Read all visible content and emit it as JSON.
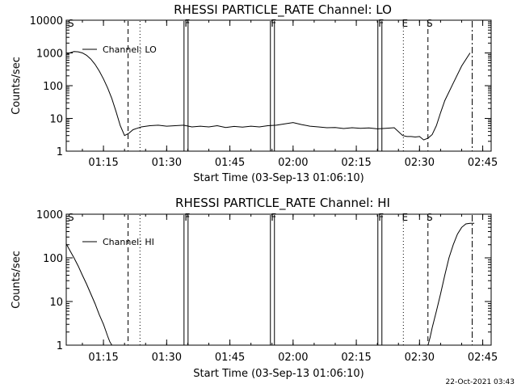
{
  "timestamp": "22-Oct-2021 03:43",
  "chart_data": [
    {
      "type": "line",
      "title": "RHESSI PARTICLE_RATE Channel: LO",
      "xlabel": "Start Time (03-Sep-13 01:06:10)",
      "ylabel": "Counts/sec",
      "yscale": "log",
      "ylim": [
        1,
        10000
      ],
      "xlim": [
        "01:06:10",
        "02:47:00"
      ],
      "x_ticks": [
        "01:15",
        "01:30",
        "01:45",
        "02:00",
        "02:15",
        "02:30",
        "02:45"
      ],
      "y_ticks": [
        "1",
        "10",
        "100",
        "1000",
        "10000"
      ],
      "legend": "Channel: LO",
      "series": [
        {
          "name": "Channel: LO",
          "x": [
            "01:06:10",
            "01:07:00",
            "01:08:00",
            "01:09:00",
            "01:10:00",
            "01:11:00",
            "01:12:00",
            "01:13:00",
            "01:14:00",
            "01:15:00",
            "01:16:00",
            "01:17:00",
            "01:18:00",
            "01:19:00",
            "01:20:00",
            "01:21:00",
            "01:22:00",
            "01:23:00",
            "01:24:00",
            "01:26:00",
            "01:28:00",
            "01:30:00",
            "01:32:00",
            "01:34:00",
            "01:36:00",
            "01:38:00",
            "01:40:00",
            "01:42:00",
            "01:44:00",
            "01:46:00",
            "01:48:00",
            "01:50:00",
            "01:52:00",
            "01:54:00",
            "01:56:00",
            "01:58:00",
            "02:00:00",
            "02:02:00",
            "02:04:00",
            "02:06:00",
            "02:08:00",
            "02:10:00",
            "02:12:00",
            "02:14:00",
            "02:16:00",
            "02:18:00",
            "02:20:00",
            "02:22:00",
            "02:24:00",
            "02:26:00",
            "02:27:00",
            "02:28:00",
            "02:29:00",
            "02:30:00",
            "02:31:00",
            "02:32:00",
            "02:33:00",
            "02:34:00",
            "02:35:00",
            "02:36:00",
            "02:38:00",
            "02:40:00",
            "02:42:00"
          ],
          "y": [
            900,
            1000,
            1100,
            1080,
            1000,
            850,
            650,
            450,
            280,
            160,
            85,
            40,
            16,
            6,
            3,
            3.5,
            4.5,
            5,
            5.5,
            6,
            6.2,
            5.8,
            6,
            6.2,
            5.5,
            5.8,
            5.5,
            6,
            5.3,
            5.7,
            5.4,
            5.8,
            5.5,
            6,
            6.2,
            6.8,
            7.5,
            6.5,
            5.8,
            5.5,
            5.2,
            5.3,
            4.9,
            5.2,
            5,
            5.1,
            4.8,
            5,
            5.2,
            3,
            2.8,
            2.8,
            2.7,
            2.8,
            2.2,
            2.5,
            3.2,
            6,
            15,
            35,
            120,
            400,
            1000
          ]
        }
      ],
      "markers": [
        {
          "label": "S",
          "x": "01:06:10"
        },
        {
          "label": "F",
          "x": "01:34:30"
        },
        {
          "label": "F",
          "x": "01:55:00"
        },
        {
          "label": "F",
          "x": "02:20:30"
        },
        {
          "label": "E",
          "x": "02:26:10"
        },
        {
          "label": "S",
          "x": "02:32:00"
        }
      ]
    },
    {
      "type": "line",
      "title": "RHESSI PARTICLE_RATE Channel: HI",
      "xlabel": "Start Time (03-Sep-13 01:06:10)",
      "ylabel": "Counts/sec",
      "yscale": "log",
      "ylim": [
        1,
        1000
      ],
      "xlim": [
        "01:06:10",
        "02:47:00"
      ],
      "x_ticks": [
        "01:15",
        "01:30",
        "01:45",
        "02:00",
        "02:15",
        "02:30",
        "02:45"
      ],
      "y_ticks": [
        "1",
        "10",
        "100",
        "1000"
      ],
      "legend": "Channel: HI",
      "series": [
        {
          "name": "Channel: HI",
          "x": [
            "01:06:10",
            "01:07:00",
            "01:08:00",
            "01:09:00",
            "01:10:00",
            "01:11:00",
            "01:12:00",
            "01:13:00",
            "01:14:00",
            "01:15:00",
            "01:15:30",
            "01:16:00",
            "01:16:30",
            "01:17:00"
          ],
          "y": [
            210,
            150,
            100,
            65,
            40,
            25,
            15,
            9,
            5,
            3,
            2.2,
            1.6,
            1.2,
            1
          ]
        },
        {
          "name": "Channel: HI",
          "x": [
            "02:32:00",
            "02:32:30",
            "02:33:00",
            "02:34:00",
            "02:35:00",
            "02:36:00",
            "02:37:00",
            "02:38:00",
            "02:39:00",
            "02:40:00",
            "02:41:00",
            "02:42:00",
            "02:43:00"
          ],
          "y": [
            1,
            1.5,
            2.5,
            6,
            15,
            40,
            100,
            200,
            350,
            500,
            600,
            620,
            620
          ]
        }
      ],
      "markers": [
        {
          "label": "S",
          "x": "01:06:10"
        },
        {
          "label": "F",
          "x": "01:34:30"
        },
        {
          "label": "F",
          "x": "01:55:00"
        },
        {
          "label": "F",
          "x": "02:20:30"
        },
        {
          "label": "E",
          "x": "02:26:10"
        },
        {
          "label": "S",
          "x": "02:32:00"
        }
      ]
    }
  ]
}
